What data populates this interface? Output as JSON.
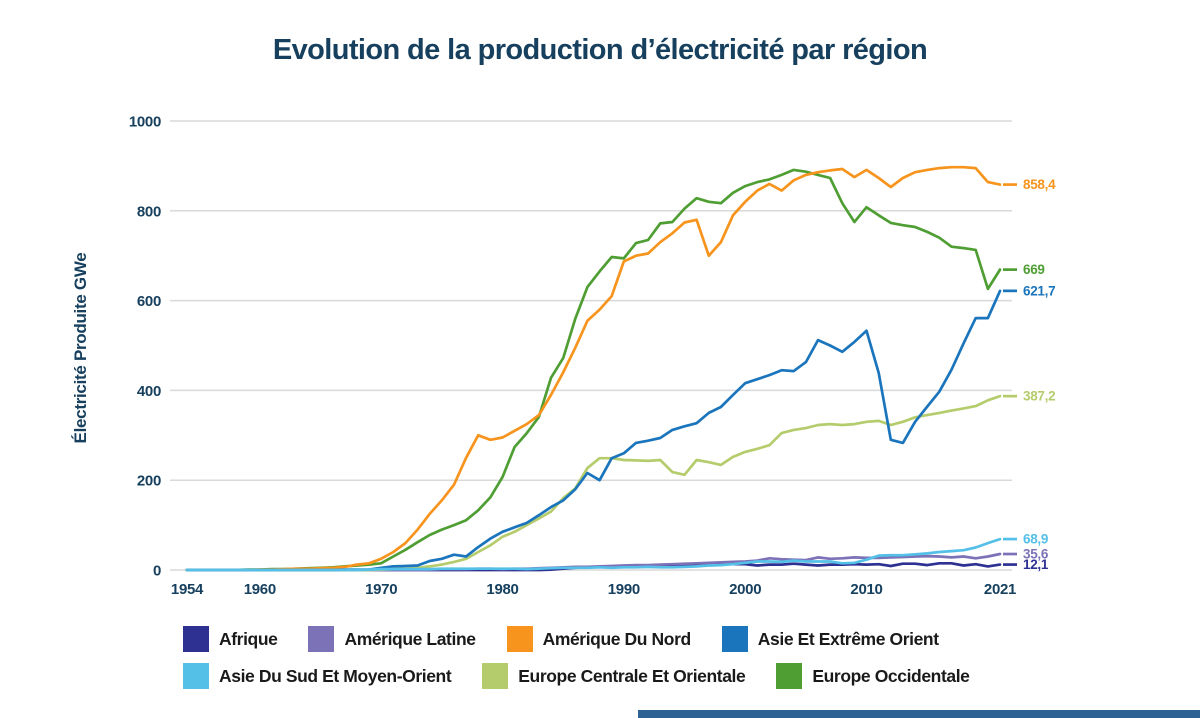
{
  "chart_data": {
    "type": "line",
    "title": "Evolution de la production d’électricité par région",
    "xlabel": "",
    "ylabel": "Électricité Produite GWe",
    "x_range": [
      1954,
      2021
    ],
    "x_ticks": [
      1954,
      1960,
      1970,
      1980,
      1990,
      2000,
      2010,
      2021
    ],
    "y_ticks": [
      0,
      200,
      400,
      600,
      800,
      1000
    ],
    "ylim": [
      0,
      1000
    ],
    "grid": "horizontal",
    "legend_position": "bottom",
    "years": [
      1954,
      1955,
      1956,
      1957,
      1958,
      1959,
      1960,
      1961,
      1962,
      1963,
      1964,
      1965,
      1966,
      1967,
      1968,
      1969,
      1970,
      1971,
      1972,
      1973,
      1974,
      1975,
      1976,
      1977,
      1978,
      1979,
      1980,
      1981,
      1982,
      1983,
      1984,
      1985,
      1986,
      1987,
      1988,
      1989,
      1990,
      1991,
      1992,
      1993,
      1994,
      1995,
      1996,
      1997,
      1998,
      1999,
      2000,
      2001,
      2002,
      2003,
      2004,
      2005,
      2006,
      2007,
      2008,
      2009,
      2010,
      2011,
      2012,
      2013,
      2014,
      2015,
      2016,
      2017,
      2018,
      2019,
      2020,
      2021
    ],
    "series": [
      {
        "name": "Afrique",
        "color": "#2e3192",
        "end_label": "12,1",
        "final_value": 12.1,
        "values": [
          0,
          0,
          0,
          0,
          0,
          0,
          0,
          0,
          0,
          0,
          0,
          0,
          0,
          0,
          0,
          0,
          0,
          0,
          0,
          0,
          0,
          0,
          0,
          0,
          0,
          0,
          0,
          0,
          0,
          0,
          1,
          3,
          5,
          6,
          7,
          8,
          8,
          9,
          9,
          7,
          9,
          11,
          11,
          12,
          13,
          13,
          13,
          10,
          12,
          12,
          14,
          12,
          10,
          12,
          12,
          13,
          12,
          13,
          9,
          14,
          14,
          11,
          15,
          15,
          10,
          13,
          8,
          12.1
        ]
      },
      {
        "name": "Amérique Latine",
        "color": "#7c72b8",
        "end_label": "35,6",
        "final_value": 35.6,
        "values": [
          0,
          0,
          0,
          0,
          0,
          0,
          0,
          0,
          0,
          0,
          0,
          0,
          0,
          0,
          0,
          0,
          0,
          0,
          0,
          0,
          1,
          2,
          2,
          2,
          3,
          3,
          2,
          3,
          3,
          4,
          5,
          6,
          7,
          7,
          8,
          9,
          10,
          11,
          11,
          12,
          13,
          14,
          15,
          16,
          17,
          18,
          19,
          21,
          26,
          24,
          23,
          22,
          28,
          25,
          26,
          28,
          27,
          27,
          28,
          29,
          30,
          31,
          30,
          28,
          30,
          26,
          30,
          35.6
        ]
      },
      {
        "name": "Amérique Du Nord",
        "color": "#f7941d",
        "end_label": "858,4",
        "final_value": 858.4,
        "values": [
          0,
          0,
          0,
          0,
          0,
          0,
          1,
          1,
          2,
          3,
          3,
          4,
          5,
          7,
          12,
          15,
          25,
          40,
          60,
          90,
          125,
          155,
          190,
          250,
          300,
          290,
          295,
          310,
          325,
          345,
          390,
          440,
          495,
          555,
          580,
          610,
          687,
          700,
          705,
          730,
          750,
          774,
          780,
          700,
          730,
          790,
          820,
          845,
          860,
          845,
          868,
          880,
          886,
          890,
          893,
          875,
          891,
          873,
          853,
          873,
          886,
          891,
          895,
          897,
          897,
          895,
          864,
          858.4
        ]
      },
      {
        "name": "Asie Et Extrême Orient",
        "color": "#1b75bc",
        "end_label": "621,7",
        "final_value": 621.7,
        "values": [
          0,
          0,
          0,
          0,
          0,
          0,
          0,
          0,
          0,
          0,
          0,
          0,
          0,
          1,
          1,
          1,
          5,
          8,
          9,
          10,
          20,
          25,
          34,
          30,
          51,
          70,
          85,
          95,
          105,
          122,
          140,
          155,
          180,
          216,
          200,
          249,
          260,
          283,
          288,
          294,
          312,
          320,
          327,
          350,
          363,
          390,
          416,
          425,
          434,
          445,
          443,
          463,
          512,
          500,
          486,
          508,
          533,
          439,
          290,
          283,
          330,
          364,
          397,
          446,
          505,
          561,
          561,
          621.7
        ]
      },
      {
        "name": "Asie Du Sud Et Moyen-Orient",
        "color": "#54c0e8",
        "end_label": "68,9",
        "final_value": 68.9,
        "values": [
          0,
          0,
          0,
          0,
          0,
          0,
          0,
          0,
          0,
          0,
          0,
          0,
          0,
          0,
          0,
          1,
          2,
          2,
          2,
          2,
          2,
          3,
          3,
          3,
          3,
          3,
          3,
          3,
          2,
          3,
          4,
          5,
          5,
          5,
          6,
          5,
          6,
          6,
          7,
          6,
          6,
          7,
          8,
          10,
          11,
          13,
          16,
          19,
          19,
          18,
          21,
          19,
          19,
          19,
          15,
          16,
          23,
          32,
          33,
          33,
          35,
          37,
          40,
          42,
          44,
          50,
          60,
          68.9
        ]
      },
      {
        "name": "Europe Centrale Et Orientale",
        "color": "#b5cc6c",
        "end_label": "387,2",
        "final_value": 387.2,
        "values": [
          0,
          0,
          0,
          0,
          0,
          0,
          0,
          0,
          0,
          0,
          0,
          0,
          0,
          0,
          0,
          0,
          1,
          2,
          3,
          5,
          8,
          12,
          18,
          25,
          40,
          55,
          74,
          85,
          100,
          115,
          130,
          160,
          182,
          227,
          249,
          249,
          245,
          244,
          243,
          245,
          218,
          212,
          245,
          240,
          234,
          252,
          263,
          270,
          278,
          305,
          312,
          316,
          323,
          325,
          323,
          325,
          330,
          332,
          323,
          330,
          340,
          345,
          350,
          355,
          360,
          365,
          378,
          387.2
        ]
      },
      {
        "name": "Europe Occidentale",
        "color": "#4f9e33",
        "end_label": "669",
        "final_value": 669,
        "values": [
          0,
          0,
          0,
          0,
          0,
          1,
          1,
          2,
          2,
          3,
          4,
          5,
          6,
          8,
          10,
          12,
          15,
          30,
          45,
          62,
          78,
          90,
          100,
          111,
          133,
          162,
          207,
          274,
          305,
          341,
          428,
          472,
          560,
          630,
          665,
          697,
          694,
          728,
          735,
          772,
          775,
          805,
          828,
          820,
          817,
          840,
          855,
          864,
          870,
          880,
          891,
          887,
          880,
          873,
          817,
          775,
          808,
          790,
          773,
          768,
          764,
          753,
          740,
          720,
          717,
          713,
          626,
          669
        ]
      }
    ]
  },
  "colors": {
    "title_text": "#17405e",
    "axis_text": "#17405e",
    "gridline": "#d9d9d9",
    "legend_text": "#1a1a1a",
    "background": "#ffffff",
    "footer_bar": "#2d6394"
  }
}
